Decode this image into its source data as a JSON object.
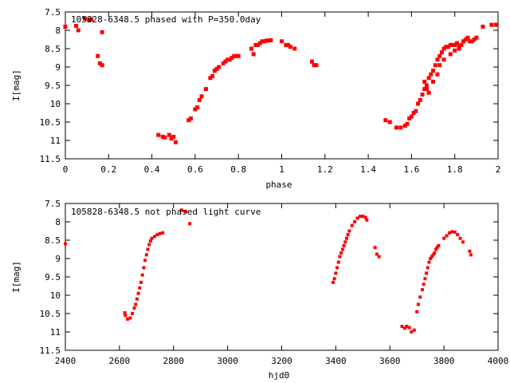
{
  "chart_data": [
    {
      "type": "scatter",
      "title": "105828-6348.5 phased with P=350.0day",
      "xlabel": "phase",
      "ylabel": "I[mag]",
      "xlim": [
        0,
        2
      ],
      "ylim": [
        11.5,
        7.5
      ],
      "y_inverted": true,
      "grid": false,
      "color": "#ff0000",
      "xticks": [
        "0",
        "0.2",
        "0.4",
        "0.6",
        "0.8",
        "1",
        "1.2",
        "1.4",
        "1.6",
        "1.8",
        "2"
      ],
      "yticks": [
        "7.5",
        "8",
        "8.5",
        "9",
        "9.5",
        "10",
        "10.5",
        "11",
        "11.5"
      ],
      "points": [
        [
          0.0,
          7.9
        ],
        [
          0.05,
          7.88
        ],
        [
          0.06,
          8.0
        ],
        [
          0.09,
          7.68
        ],
        [
          0.11,
          7.72
        ],
        [
          0.12,
          7.7
        ],
        [
          0.15,
          8.7
        ],
        [
          0.16,
          8.9
        ],
        [
          0.17,
          8.95
        ],
        [
          0.17,
          8.05
        ],
        [
          0.43,
          10.85
        ],
        [
          0.45,
          10.9
        ],
        [
          0.46,
          10.92
        ],
        [
          0.48,
          10.85
        ],
        [
          0.49,
          10.95
        ],
        [
          0.5,
          10.9
        ],
        [
          0.51,
          11.05
        ],
        [
          0.57,
          10.45
        ],
        [
          0.58,
          10.4
        ],
        [
          0.6,
          10.15
        ],
        [
          0.61,
          10.1
        ],
        [
          0.62,
          9.9
        ],
        [
          0.63,
          9.8
        ],
        [
          0.65,
          9.6
        ],
        [
          0.67,
          9.3
        ],
        [
          0.68,
          9.25
        ],
        [
          0.69,
          9.1
        ],
        [
          0.7,
          9.05
        ],
        [
          0.71,
          9.0
        ],
        [
          0.73,
          8.9
        ],
        [
          0.74,
          8.85
        ],
        [
          0.75,
          8.8
        ],
        [
          0.76,
          8.8
        ],
        [
          0.77,
          8.75
        ],
        [
          0.78,
          8.7
        ],
        [
          0.79,
          8.7
        ],
        [
          0.8,
          8.7
        ],
        [
          0.86,
          8.5
        ],
        [
          0.87,
          8.65
        ],
        [
          0.88,
          8.4
        ],
        [
          0.89,
          8.4
        ],
        [
          0.9,
          8.35
        ],
        [
          0.91,
          8.3
        ],
        [
          0.92,
          8.3
        ],
        [
          0.93,
          8.28
        ],
        [
          0.94,
          8.28
        ],
        [
          0.95,
          8.27
        ],
        [
          1.0,
          8.3
        ],
        [
          1.02,
          8.4
        ],
        [
          1.03,
          8.4
        ],
        [
          1.04,
          8.45
        ],
        [
          1.06,
          8.5
        ],
        [
          1.14,
          8.85
        ],
        [
          1.15,
          8.95
        ],
        [
          1.16,
          8.95
        ],
        [
          1.48,
          10.45
        ],
        [
          1.5,
          10.5
        ],
        [
          1.53,
          10.65
        ],
        [
          1.55,
          10.65
        ],
        [
          1.57,
          10.6
        ],
        [
          1.58,
          10.55
        ],
        [
          1.59,
          10.4
        ],
        [
          1.6,
          10.35
        ],
        [
          1.61,
          10.25
        ],
        [
          1.62,
          10.2
        ],
        [
          1.63,
          10.0
        ],
        [
          1.64,
          9.9
        ],
        [
          1.65,
          9.75
        ],
        [
          1.66,
          9.6
        ],
        [
          1.67,
          9.5
        ],
        [
          1.68,
          9.3
        ],
        [
          1.69,
          9.2
        ],
        [
          1.7,
          9.1
        ],
        [
          1.71,
          8.95
        ],
        [
          1.72,
          8.8
        ],
        [
          1.73,
          8.7
        ],
        [
          1.74,
          8.6
        ],
        [
          1.75,
          8.5
        ],
        [
          1.76,
          8.45
        ],
        [
          1.77,
          8.45
        ],
        [
          1.78,
          8.4
        ],
        [
          1.79,
          8.4
        ],
        [
          1.8,
          8.4
        ],
        [
          1.81,
          8.35
        ],
        [
          1.82,
          8.45
        ],
        [
          1.83,
          8.4
        ],
        [
          1.84,
          8.3
        ],
        [
          1.85,
          8.25
        ],
        [
          1.86,
          8.2
        ],
        [
          1.87,
          8.3
        ],
        [
          1.88,
          8.3
        ],
        [
          1.89,
          8.25
        ],
        [
          1.9,
          8.2
        ],
        [
          1.93,
          7.9
        ],
        [
          1.97,
          7.85
        ],
        [
          1.99,
          7.85
        ],
        [
          1.66,
          9.4
        ],
        [
          1.67,
          9.6
        ],
        [
          1.68,
          9.7
        ],
        [
          1.7,
          9.4
        ],
        [
          1.72,
          9.2
        ],
        [
          1.73,
          8.95
        ],
        [
          1.75,
          8.8
        ],
        [
          1.78,
          8.65
        ],
        [
          1.8,
          8.55
        ],
        [
          1.82,
          8.5
        ]
      ]
    },
    {
      "type": "scatter",
      "title": "105828-6348.5 not phased light curve",
      "xlabel": "hjd0",
      "ylabel": "I[mag]",
      "xlim": [
        2400,
        4000
      ],
      "ylim": [
        11.5,
        7.5
      ],
      "y_inverted": true,
      "grid": false,
      "color": "#ff0000",
      "xticks": [
        "2400",
        "2600",
        "2800",
        "3000",
        "3200",
        "3400",
        "3600",
        "3800",
        "4000"
      ],
      "yticks": [
        "7.5",
        "8",
        "8.5",
        "9",
        "9.5",
        "10",
        "10.5",
        "11",
        "11.5"
      ],
      "points": [
        [
          2400,
          8.6
        ],
        [
          2620,
          10.48
        ],
        [
          2622,
          10.55
        ],
        [
          2630,
          10.65
        ],
        [
          2640,
          10.62
        ],
        [
          2648,
          10.5
        ],
        [
          2655,
          10.35
        ],
        [
          2660,
          10.25
        ],
        [
          2665,
          10.1
        ],
        [
          2670,
          9.95
        ],
        [
          2675,
          9.8
        ],
        [
          2680,
          9.65
        ],
        [
          2685,
          9.45
        ],
        [
          2690,
          9.25
        ],
        [
          2695,
          9.05
        ],
        [
          2700,
          8.9
        ],
        [
          2705,
          8.75
        ],
        [
          2710,
          8.62
        ],
        [
          2715,
          8.52
        ],
        [
          2720,
          8.45
        ],
        [
          2730,
          8.4
        ],
        [
          2740,
          8.35
        ],
        [
          2750,
          8.32
        ],
        [
          2760,
          8.3
        ],
        [
          2830,
          7.68
        ],
        [
          2845,
          7.72
        ],
        [
          2860,
          8.05
        ],
        [
          3390,
          9.65
        ],
        [
          3395,
          9.55
        ],
        [
          3400,
          9.4
        ],
        [
          3405,
          9.25
        ],
        [
          3410,
          9.1
        ],
        [
          3415,
          8.95
        ],
        [
          3420,
          8.85
        ],
        [
          3425,
          8.75
        ],
        [
          3430,
          8.65
        ],
        [
          3435,
          8.55
        ],
        [
          3440,
          8.45
        ],
        [
          3445,
          8.35
        ],
        [
          3450,
          8.25
        ],
        [
          3460,
          8.1
        ],
        [
          3470,
          8.0
        ],
        [
          3480,
          7.9
        ],
        [
          3490,
          7.85
        ],
        [
          3500,
          7.85
        ],
        [
          3510,
          7.88
        ],
        [
          3515,
          7.95
        ],
        [
          3545,
          8.7
        ],
        [
          3552,
          8.88
        ],
        [
          3560,
          8.95
        ],
        [
          3645,
          10.85
        ],
        [
          3655,
          10.9
        ],
        [
          3662,
          10.85
        ],
        [
          3672,
          10.88
        ],
        [
          3680,
          11.0
        ],
        [
          3690,
          10.95
        ],
        [
          3700,
          10.45
        ],
        [
          3705,
          10.25
        ],
        [
          3712,
          10.05
        ],
        [
          3720,
          9.85
        ],
        [
          3725,
          9.7
        ],
        [
          3730,
          9.55
        ],
        [
          3735,
          9.4
        ],
        [
          3740,
          9.25
        ],
        [
          3745,
          9.1
        ],
        [
          3750,
          9.0
        ],
        [
          3755,
          8.95
        ],
        [
          3760,
          8.9
        ],
        [
          3765,
          8.85
        ],
        [
          3770,
          8.75
        ],
        [
          3775,
          8.7
        ],
        [
          3780,
          8.65
        ],
        [
          3800,
          8.45
        ],
        [
          3810,
          8.38
        ],
        [
          3820,
          8.3
        ],
        [
          3830,
          8.27
        ],
        [
          3840,
          8.28
        ],
        [
          3850,
          8.35
        ],
        [
          3860,
          8.45
        ],
        [
          3870,
          8.55
        ],
        [
          3895,
          8.8
        ],
        [
          3900,
          8.9
        ]
      ]
    }
  ]
}
